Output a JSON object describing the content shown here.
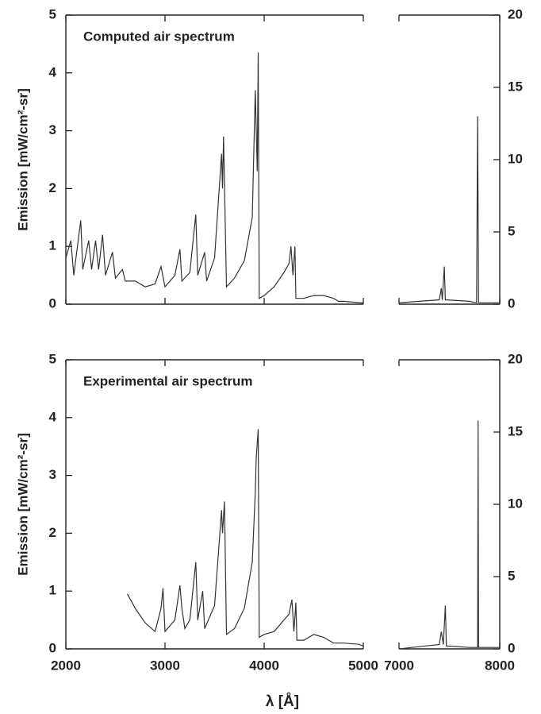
{
  "chart_data": [
    {
      "type": "line",
      "title": "Computed air spectrum",
      "ylabel": "Emission [mW/cm²-sr]",
      "color": "#333333",
      "x": [
        2000,
        2050,
        2080,
        2150,
        2170,
        2230,
        2260,
        2300,
        2330,
        2370,
        2400,
        2470,
        2500,
        2570,
        2600,
        2700,
        2800,
        2900,
        2960,
        3000,
        3100,
        3150,
        3170,
        3250,
        3310,
        3330,
        3400,
        3420,
        3500,
        3570,
        3580,
        3590,
        3620,
        3700,
        3800,
        3880,
        3910,
        3930,
        3940,
        3950,
        4000,
        4100,
        4200,
        4250,
        4270,
        4290,
        4310,
        4320,
        4400,
        4500,
        4600,
        4700,
        4750,
        4800,
        5000
      ],
      "values": [
        0.8,
        1.1,
        0.5,
        1.45,
        0.6,
        1.1,
        0.6,
        1.1,
        0.6,
        1.2,
        0.5,
        0.9,
        0.45,
        0.6,
        0.4,
        0.4,
        0.3,
        0.35,
        0.65,
        0.3,
        0.5,
        0.95,
        0.4,
        0.55,
        1.55,
        0.5,
        0.9,
        0.4,
        0.8,
        2.6,
        2.0,
        2.9,
        0.3,
        0.45,
        0.75,
        1.5,
        3.7,
        2.3,
        4.35,
        0.1,
        0.15,
        0.3,
        0.55,
        0.7,
        1.0,
        0.5,
        1.0,
        0.1,
        0.1,
        0.15,
        0.15,
        0.1,
        0.05,
        0.05,
        0.02
      ],
      "xlim": [
        2000,
        5000
      ],
      "xticks": [
        2000,
        3000,
        4000,
        5000
      ],
      "show_xtick_labels": false,
      "ylim": [
        0,
        5
      ],
      "yticks": [
        0,
        1,
        2,
        3,
        4,
        5
      ]
    },
    {
      "type": "line",
      "color": "#333333",
      "x": [
        7000,
        7200,
        7400,
        7420,
        7430,
        7450,
        7460,
        7700,
        7770,
        7780,
        7790,
        8000
      ],
      "values": [
        0.1,
        0.2,
        0.3,
        1.1,
        0.3,
        2.6,
        0.3,
        0.2,
        0.1,
        13,
        0.1,
        0.1
      ],
      "xlim": [
        7000,
        8000
      ],
      "xticks": [
        7000,
        8000
      ],
      "show_xtick_labels": false,
      "y2lim": [
        0,
        20
      ],
      "y2ticks": [
        0,
        5,
        10,
        15,
        20
      ]
    },
    {
      "type": "line",
      "title": "Experimental air spectrum",
      "ylabel": "Emission [mW/cm²-sr]",
      "color": "#333333",
      "x": [
        2620,
        2700,
        2800,
        2900,
        2960,
        2980,
        3000,
        3100,
        3150,
        3170,
        3200,
        3250,
        3310,
        3330,
        3380,
        3400,
        3500,
        3570,
        3580,
        3600,
        3620,
        3700,
        3800,
        3880,
        3910,
        3920,
        3940,
        3950,
        4000,
        4100,
        4200,
        4250,
        4280,
        4300,
        4320,
        4330,
        4400,
        4500,
        4600,
        4700,
        4800,
        4950,
        5000
      ],
      "values": [
        0.95,
        0.7,
        0.45,
        0.3,
        0.7,
        1.05,
        0.3,
        0.5,
        1.1,
        0.7,
        0.35,
        0.5,
        1.5,
        0.5,
        1.0,
        0.35,
        0.75,
        2.4,
        2.0,
        2.55,
        0.25,
        0.35,
        0.7,
        1.5,
        2.7,
        3.3,
        3.8,
        0.2,
        0.25,
        0.3,
        0.5,
        0.6,
        0.85,
        0.3,
        0.8,
        0.15,
        0.15,
        0.25,
        0.2,
        0.1,
        0.1,
        0.08,
        0.05
      ],
      "xlim": [
        2000,
        5000
      ],
      "xticks": [
        2000,
        3000,
        4000,
        5000
      ],
      "show_xtick_labels": true,
      "ylim": [
        0,
        5
      ],
      "yticks": [
        0,
        1,
        2,
        3,
        4,
        5
      ],
      "xlabel": "λ [Å]"
    },
    {
      "type": "line",
      "color": "#333333",
      "x": [
        7000,
        7400,
        7420,
        7440,
        7460,
        7470,
        7700,
        7780,
        7785,
        7790,
        8000
      ],
      "values": [
        0,
        0.3,
        1.2,
        0.3,
        3.0,
        0.2,
        0.1,
        0.1,
        15.8,
        0.1,
        0.1
      ],
      "xlim": [
        7000,
        8000
      ],
      "xticks": [
        7000,
        8000
      ],
      "show_xtick_labels": true,
      "y2lim": [
        0,
        20
      ],
      "y2ticks": [
        0,
        5,
        10,
        15,
        20
      ]
    }
  ]
}
